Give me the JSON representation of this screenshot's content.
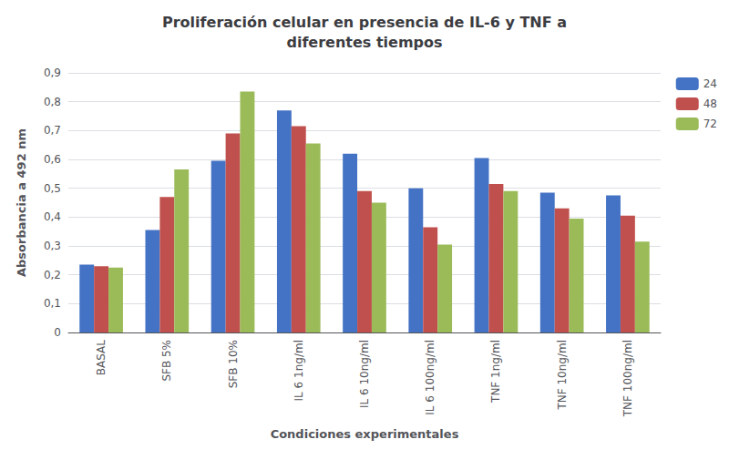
{
  "chart_data": {
    "type": "bar",
    "title": "Proliferación celular en presencia de IL-6 y TNF a\ndiferentes tiempos",
    "xlabel": "Condiciones experimentales",
    "ylabel": "Absorbancia a 492 nm",
    "categories": [
      "BASAL",
      "SFB 5%",
      "SFB 10%",
      "IL 6 1ng/ml",
      "IL 6 10ng/ml",
      "IL 6 100ng/ml",
      "TNF 1ng/ml",
      "TNF 10ng/ml",
      "TNF 100ng/ml"
    ],
    "series": [
      {
        "name": "24",
        "color": "#4472C4",
        "values": [
          0.235,
          0.355,
          0.595,
          0.77,
          0.62,
          0.5,
          0.605,
          0.485,
          0.475
        ]
      },
      {
        "name": "48",
        "color": "#C0504D",
        "values": [
          0.23,
          0.47,
          0.69,
          0.715,
          0.49,
          0.365,
          0.515,
          0.43,
          0.405
        ]
      },
      {
        "name": "72",
        "color": "#9BBB59",
        "values": [
          0.225,
          0.565,
          0.835,
          0.655,
          0.45,
          0.305,
          0.49,
          0.395,
          0.315
        ]
      }
    ],
    "ylim": [
      0,
      0.9
    ],
    "yticks": [
      0,
      {
        "value": 0.1,
        "label": "0,1"
      },
      {
        "value": 0.2,
        "label": "0,2"
      },
      {
        "value": 0.3,
        "label": "0,3"
      },
      {
        "value": 0.4,
        "label": "0,4"
      },
      {
        "value": 0.5,
        "label": "0,5"
      },
      {
        "value": 0.6,
        "label": "0,6"
      },
      {
        "value": 0.7,
        "label": "0,7"
      },
      {
        "value": 0.8,
        "label": "0,8"
      },
      {
        "value": 0.9,
        "label": "0,9"
      }
    ],
    "grid": true,
    "legend": "upper right"
  }
}
